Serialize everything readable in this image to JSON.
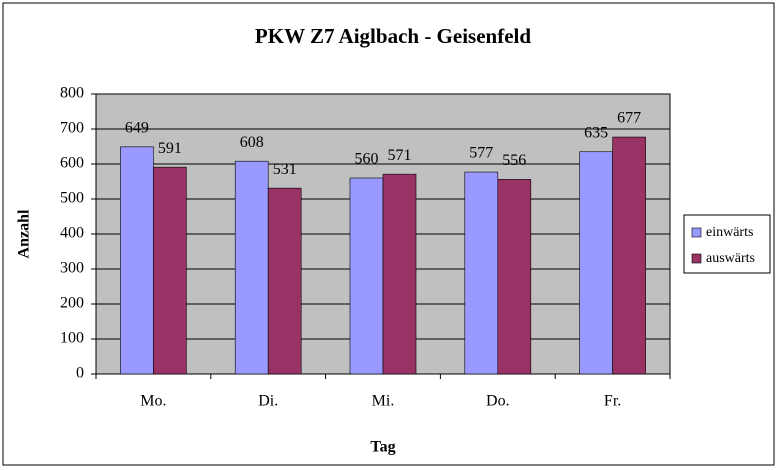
{
  "chart_data": {
    "type": "bar",
    "title": "PKW Z7 Aiglbach - Geisenfeld",
    "x_label": "Tag",
    "y_label": "Anzahl",
    "categories": [
      "Mo.",
      "Di.",
      "Mi.",
      "Do.",
      "Fr."
    ],
    "series": [
      {
        "name": "einwärts",
        "color": "#9999ff",
        "values": [
          649,
          608,
          560,
          577,
          635
        ]
      },
      {
        "name": "auswärts",
        "color": "#993366",
        "values": [
          591,
          531,
          571,
          556,
          677
        ]
      }
    ],
    "ylim": [
      0,
      800
    ],
    "yticks": [
      0,
      100,
      200,
      300,
      400,
      500,
      600,
      700,
      800
    ],
    "grid": true,
    "legend": "right",
    "plot_background": "#c0c0c0"
  }
}
